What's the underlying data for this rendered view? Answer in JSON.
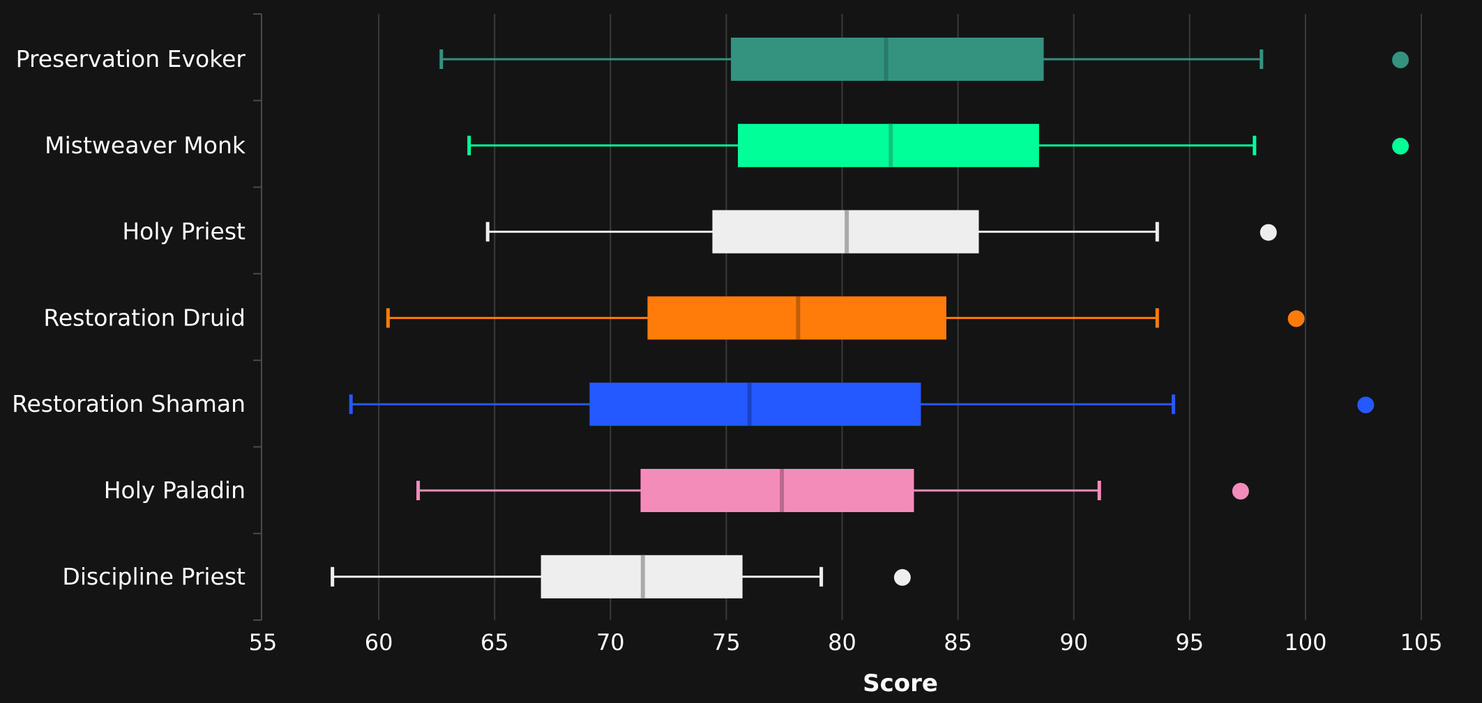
{
  "chart_data": {
    "type": "boxplot",
    "orientation": "horizontal",
    "title": "",
    "xlabel": "Score",
    "ylabel": "",
    "xlim": [
      55,
      105
    ],
    "x_ticks": [
      "55",
      "60",
      "65",
      "70",
      "75",
      "80",
      "85",
      "90",
      "95",
      "100",
      "105"
    ],
    "grid": "vertical",
    "legend": "none",
    "series": [
      {
        "category": "Preservation Evoker",
        "color": "#33937f",
        "median_color": "#2a7a69",
        "whisker_low": 62.7,
        "q1": 75.2,
        "median": 81.9,
        "q3": 88.7,
        "whisker_high": 98.1,
        "outliers": [
          104.1
        ]
      },
      {
        "category": "Mistweaver Monk",
        "color": "#00ff98",
        "median_color": "#10c47c",
        "whisker_low": 63.9,
        "q1": 75.5,
        "median": 82.1,
        "q3": 88.5,
        "whisker_high": 97.8,
        "outliers": [
          104.1
        ]
      },
      {
        "category": "Holy Priest",
        "color": "#eeeeee",
        "median_color": "#aaaaaa",
        "whisker_low": 64.7,
        "q1": 74.4,
        "median": 80.2,
        "q3": 85.9,
        "whisker_high": 93.6,
        "outliers": [
          98.4
        ]
      },
      {
        "category": "Restoration Druid",
        "color": "#ff7c0a",
        "median_color": "#c25c05",
        "whisker_low": 60.4,
        "q1": 71.6,
        "median": 78.1,
        "q3": 84.5,
        "whisker_high": 93.6,
        "outliers": [
          99.6
        ]
      },
      {
        "category": "Restoration Shaman",
        "color": "#2459ff",
        "median_color": "#1a44c4",
        "whisker_low": 58.8,
        "q1": 69.1,
        "median": 76.0,
        "q3": 83.4,
        "whisker_high": 94.3,
        "outliers": [
          102.6
        ]
      },
      {
        "category": "Holy Paladin",
        "color": "#f48cba",
        "median_color": "#b86a8d",
        "whisker_low": 61.7,
        "q1": 71.3,
        "median": 77.4,
        "q3": 83.1,
        "whisker_high": 91.1,
        "outliers": [
          97.2
        ]
      },
      {
        "category": "Discipline Priest",
        "color": "#eeeeee",
        "median_color": "#aaaaaa",
        "whisker_low": 58.0,
        "q1": 67.0,
        "median": 71.4,
        "q3": 75.7,
        "whisker_high": 79.1,
        "outliers": [
          82.6
        ]
      }
    ]
  }
}
